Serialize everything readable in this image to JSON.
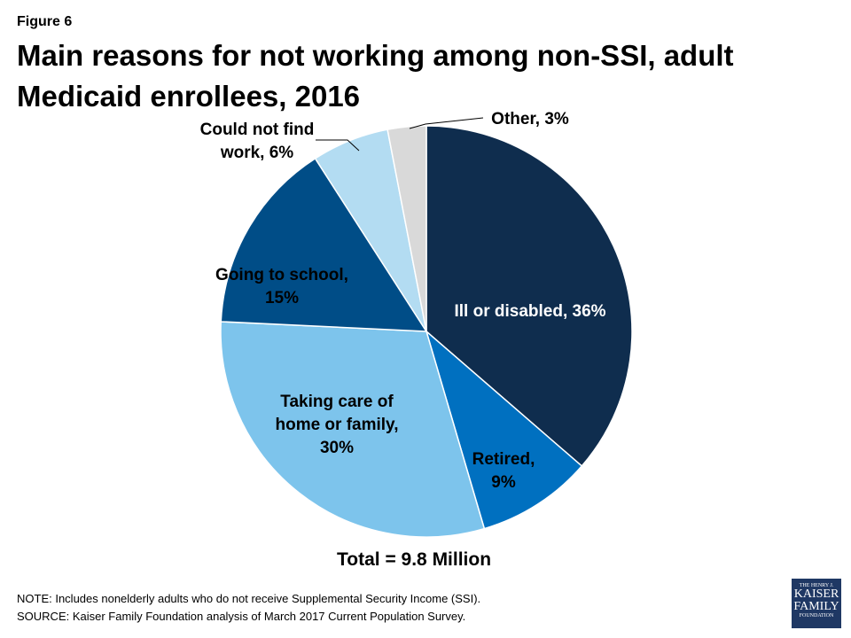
{
  "figure_label": "Figure 6",
  "chart_data": {
    "type": "pie",
    "title": "Main reasons for not working among non-SSI, adult Medicaid enrollees, 2016",
    "slices": [
      {
        "label": [
          "Ill or disabled, 36%"
        ],
        "value": 36,
        "color": "#0f2d4e",
        "text_color": "#ffffff"
      },
      {
        "label": [
          "Retired,",
          "9%"
        ],
        "value": 9,
        "color": "#0070c0",
        "text_color": "#000000"
      },
      {
        "label": [
          "Taking care of",
          "home or family,",
          "30%"
        ],
        "value": 30,
        "color": "#7dc4ec",
        "text_color": "#000000"
      },
      {
        "label": [
          "Going to school,",
          "15%"
        ],
        "value": 15,
        "color": "#004d87",
        "text_color": "#000000"
      },
      {
        "label": [
          "Could not find",
          "work, 6%"
        ],
        "value": 6,
        "color": "#b3dcf2",
        "text_color": "#000000"
      },
      {
        "label": [
          "Other, 3%"
        ],
        "value": 3,
        "color": "#d9d9d9",
        "text_color": "#000000"
      }
    ],
    "start": "top",
    "direction": "clockwise"
  },
  "total_label": "Total = 9.8 Million",
  "note": "NOTE: Includes nonelderly adults who do not receive Supplemental Security Income (SSI).",
  "source": "SOURCE: Kaiser Family Foundation analysis of March 2017 Current Population Survey.",
  "logo": {
    "line1": "THE HENRY J.",
    "line2": "KAISER",
    "line3": "FAMILY",
    "line4": "FOUNDATION"
  }
}
